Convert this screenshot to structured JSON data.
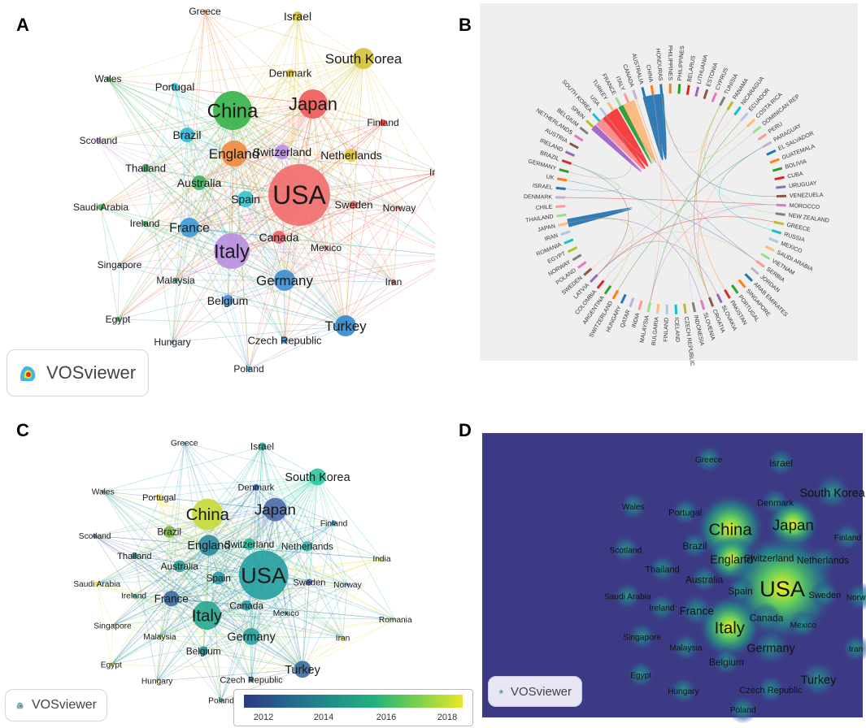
{
  "panels": {
    "a": {
      "label": "A"
    },
    "b": {
      "label": "B"
    },
    "c": {
      "label": "C"
    },
    "d": {
      "label": "D"
    }
  },
  "vosviewer_logo": {
    "text": "VOSviewer"
  },
  "network_countries": [
    "Greece",
    "Israel",
    "South Korea",
    "Denmark",
    "Japan",
    "China",
    "Wales",
    "Portugal",
    "Finland",
    "Scotland",
    "Brazil",
    "Switzerland",
    "England",
    "Netherlands",
    "India",
    "Thailand",
    "Australia",
    "USA",
    "Saudi Arabia",
    "Spain",
    "Sweden",
    "Norway",
    "Ireland",
    "France",
    "Canada",
    "Italy",
    "Mexico",
    "Romania",
    "Singapore",
    "Malaysia",
    "Germany",
    "Iran",
    "Belgium",
    "Egypt",
    "Turkey",
    "Hungary",
    "Czech Republic",
    "Poland"
  ],
  "chord_countries": [
    "HONDURAS",
    "PHILIPPINES",
    "PHILIPPINES",
    "BELARUS",
    "LITHUANIA",
    "ESTONIA",
    "CYPRUS",
    "TUNISIA",
    "PANAMA",
    "NICARAGUA",
    "ECUADOR",
    "COSTA RICA",
    "DOMINICAN REP",
    "PERU",
    "PARAGUAY",
    "EL SALVADOR",
    "GUATEMALA",
    "BOLIVIA",
    "CUBA",
    "URUGUAY",
    "VENEZUELA",
    "MOROCCO",
    "NEW ZEALAND",
    "GREECE",
    "RUSSIA",
    "MEXICO",
    "SAUDI ARABIA",
    "VIETNAM",
    "SERBIA",
    "JORDAN",
    "ARAB EMIRATES",
    "SINGAPORE",
    "PORTUGAL",
    "PAKISTAN",
    "SLOVAKIA",
    "CROATIA",
    "SLOVENIA",
    "INDONESIA",
    "CZECH REPUBLIC",
    "ICELAND",
    "FINLAND",
    "BULGARIA",
    "MALAYSIA",
    "INDIA",
    "QATAR",
    "HUNGARY",
    "SWITZERLAND",
    "ARGENTINA",
    "COLOMBIA",
    "LATVIA",
    "SWEDEN",
    "POLAND",
    "NORWAY",
    "EGYPT",
    "ROMANIA",
    "IRAN",
    "JAPAN",
    "THAILAND",
    "CHILE",
    "DENMARK",
    "ISRAEL",
    "UK",
    "GERMANY",
    "BRAZIL",
    "IRELAND",
    "AUSTRIA",
    "NETHERLANDS",
    "BELGIUM",
    "SPAIN",
    "SOUTH KOREA",
    "USA",
    "TURKEY",
    "FRANCE",
    "ITALY",
    "CANADA",
    "AUSTRALIA",
    "CHINA"
  ],
  "colorbar": {
    "ticks": [
      "2012",
      "2014",
      "2016",
      "2018"
    ]
  },
  "colors": {
    "usa_red": "#f26b6b",
    "china_green": "#3cbf5a",
    "italy_purple": "#b88ee0",
    "chord_bg": "#efefef",
    "density_bg": "#3d3a85"
  }
}
